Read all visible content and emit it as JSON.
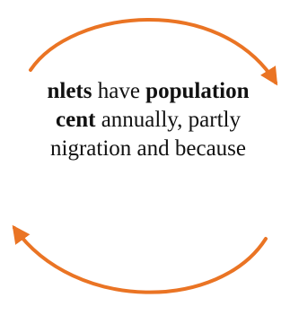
{
  "colors": {
    "arrow": "#ea7424",
    "text": "#111111",
    "background": "#ffffff"
  },
  "text": {
    "line1_part1": "nlets",
    "line1_part2": " have ",
    "line1_part3": "population",
    "line2_part1": "cent",
    "line2_part2": " annually, partly",
    "line3": "nigration and because"
  },
  "arrows": {
    "top": "arrow-clockwise-top",
    "bottom": "arrow-clockwise-bottom"
  }
}
